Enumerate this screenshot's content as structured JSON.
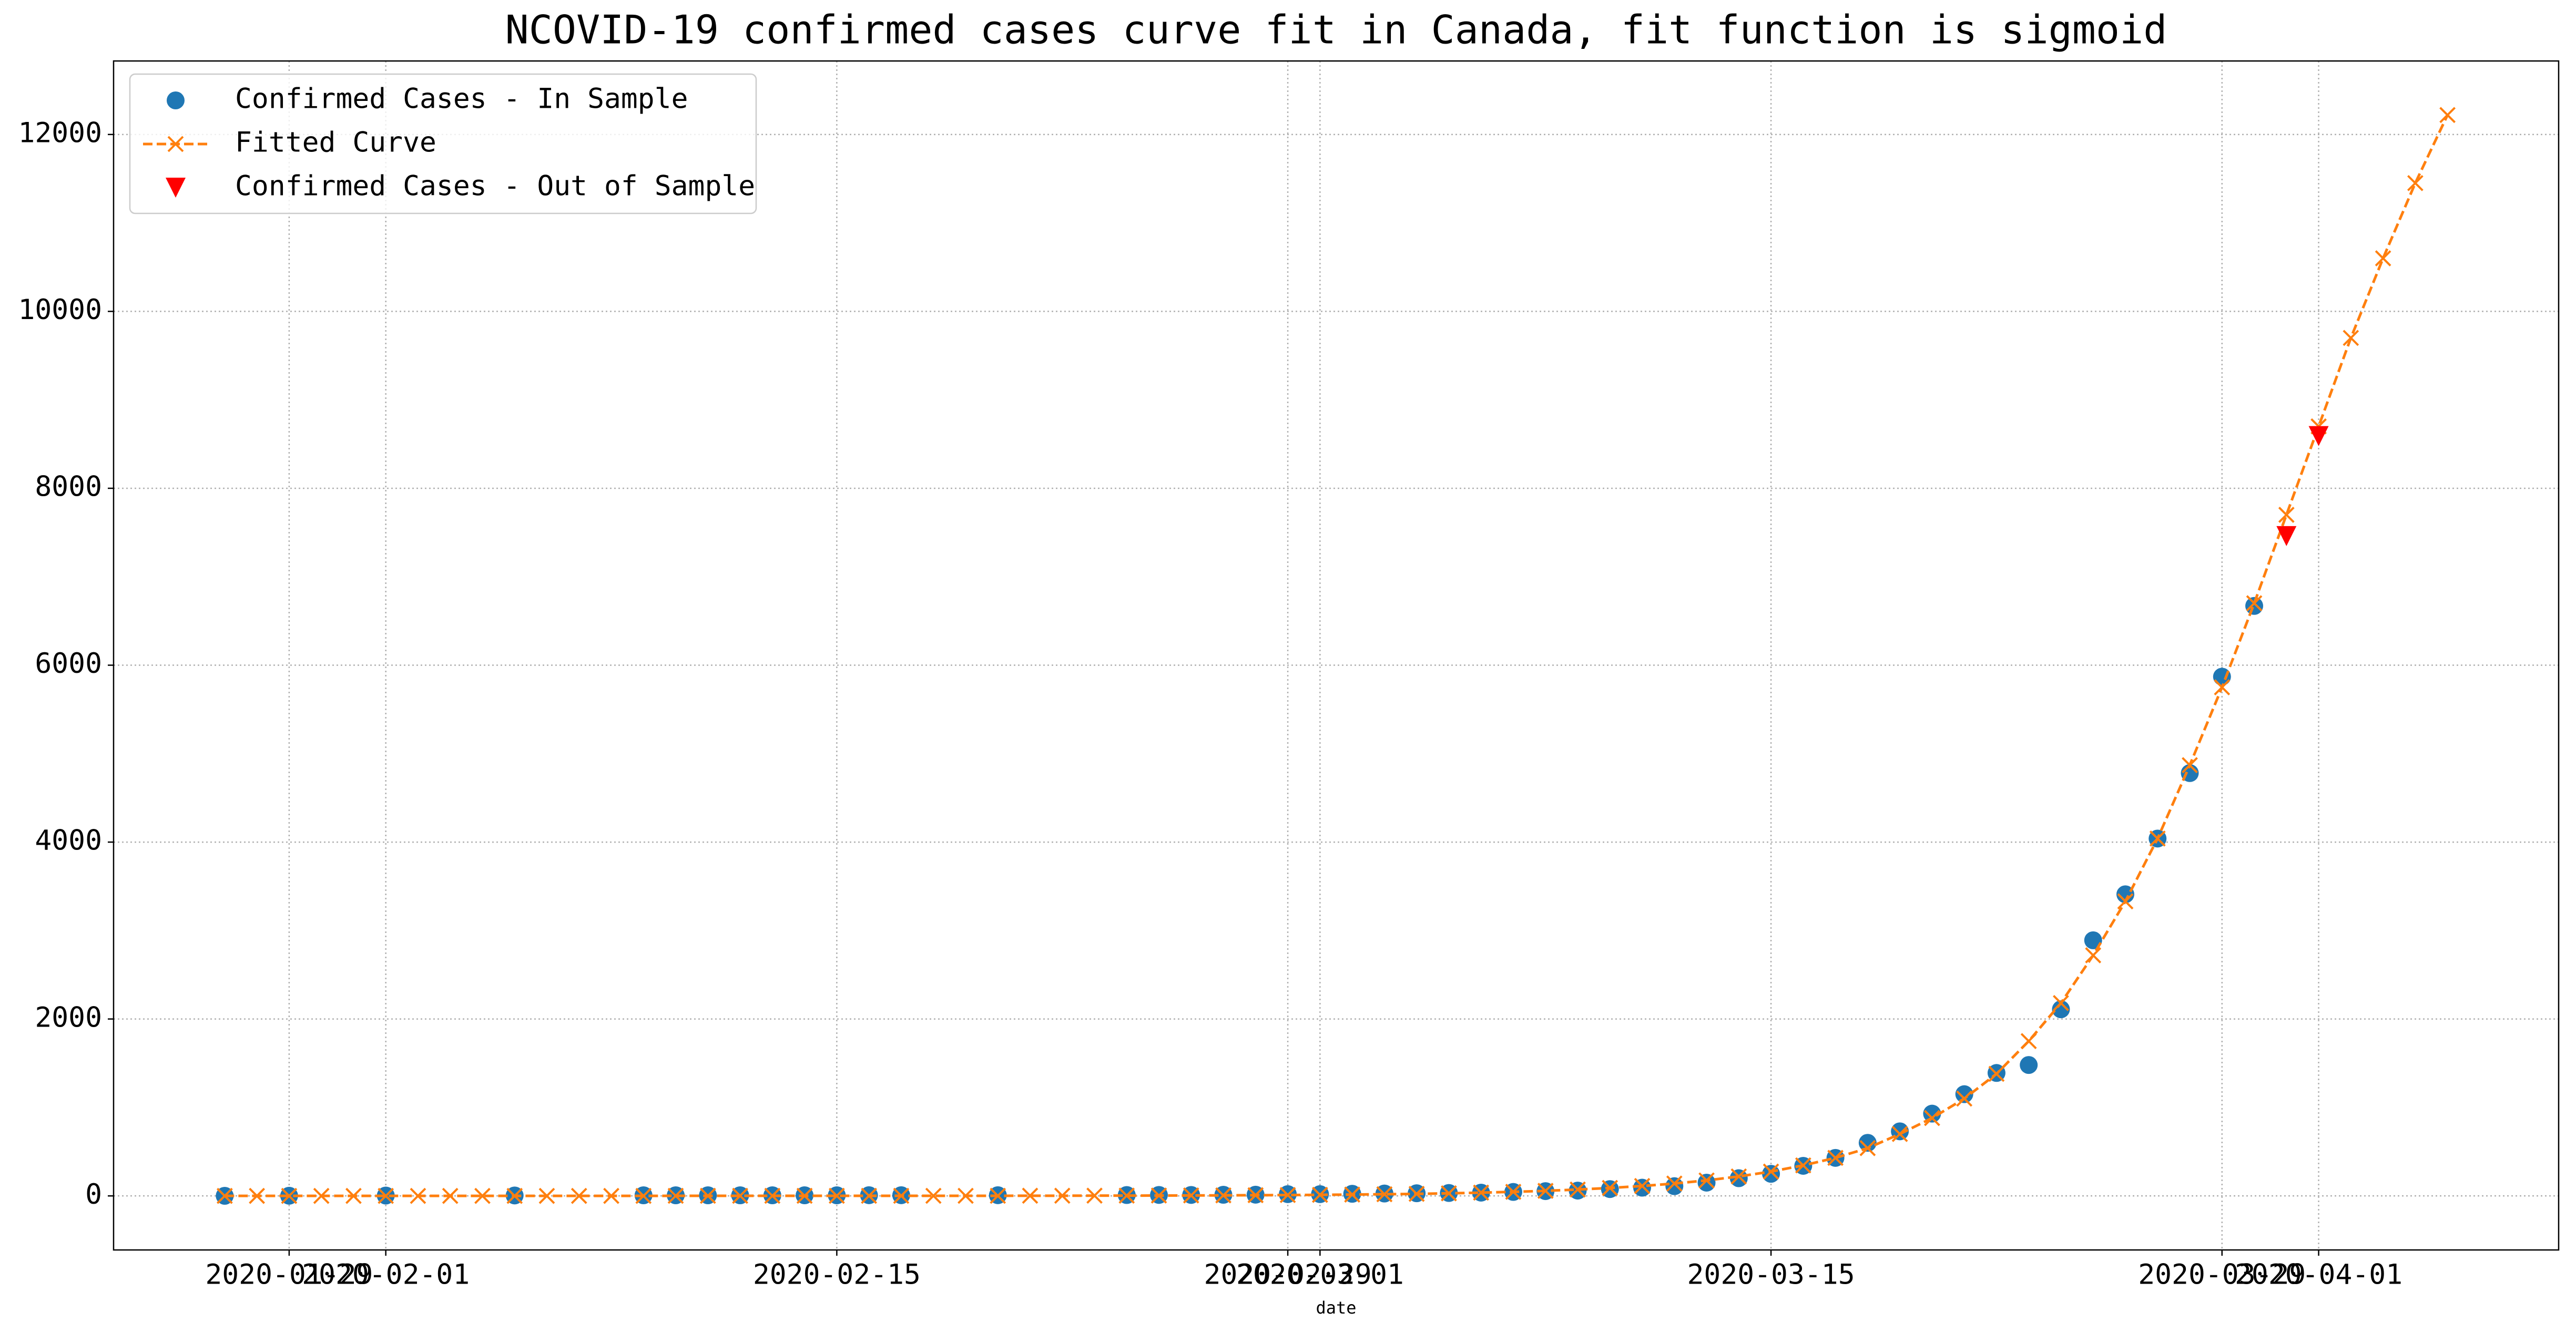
{
  "chart_data": {
    "type": "line",
    "title": "NCOVID-19 confirmed cases curve fit in Canada, fit function is sigmoid",
    "xlabel": "date",
    "xlim": [
      "2020-01-23 13:12",
      "2020-04-08 10:48"
    ],
    "xticks": [
      "2020-01-29",
      "2020-02-01",
      "2020-02-15",
      "2020-02-29",
      "2020-03-01",
      "2020-03-15",
      "2020-03-29",
      "2020-04-01"
    ],
    "ylim": [
      -611,
      12831
    ],
    "yticks": [
      0,
      2000,
      4000,
      6000,
      8000,
      10000,
      12000
    ],
    "grid": true,
    "legend": "upper left",
    "series": [
      {
        "name": "Confirmed Cases - In Sample",
        "color": "#1f77b4",
        "marker": "circle",
        "linestyle": "none",
        "x": [
          "2020-01-27",
          "2020-01-29",
          "2020-02-01",
          "2020-02-05",
          "2020-02-09",
          "2020-02-10",
          "2020-02-11",
          "2020-02-12",
          "2020-02-13",
          "2020-02-14",
          "2020-02-15",
          "2020-02-16",
          "2020-02-17",
          "2020-02-20",
          "2020-02-24",
          "2020-02-25",
          "2020-02-26",
          "2020-02-27",
          "2020-02-28",
          "2020-02-29",
          "2020-03-01",
          "2020-03-02",
          "2020-03-03",
          "2020-03-04",
          "2020-03-05",
          "2020-03-06",
          "2020-03-07",
          "2020-03-08",
          "2020-03-09",
          "2020-03-10",
          "2020-03-11",
          "2020-03-12",
          "2020-03-13",
          "2020-03-14",
          "2020-03-15",
          "2020-03-16",
          "2020-03-17",
          "2020-03-18",
          "2020-03-19",
          "2020-03-20",
          "2020-03-21",
          "2020-03-22",
          "2020-03-23",
          "2020-03-24",
          "2020-03-25",
          "2020-03-26",
          "2020-03-27",
          "2020-03-28",
          "2020-03-29",
          "2020-03-30"
        ],
        "values": [
          1,
          2,
          4,
          5,
          7,
          7,
          7,
          7,
          7,
          7,
          7,
          8,
          8,
          8,
          10,
          11,
          11,
          13,
          14,
          20,
          20,
          24,
          27,
          30,
          33,
          37,
          45,
          54,
          60,
          77,
          93,
          110,
          150,
          200,
          250,
          340,
          430,
          600,
          730,
          930,
          1150,
          1390,
          1480,
          2110,
          2890,
          3410,
          4040,
          4780,
          5870,
          6670
        ]
      },
      {
        "name": "Fitted Curve",
        "color": "#ff7f0e",
        "marker": "x",
        "linestyle": "dashed",
        "x": [
          "2020-01-27",
          "2020-01-28",
          "2020-01-29",
          "2020-01-30",
          "2020-01-31",
          "2020-02-01",
          "2020-02-02",
          "2020-02-03",
          "2020-02-04",
          "2020-02-05",
          "2020-02-06",
          "2020-02-07",
          "2020-02-08",
          "2020-02-09",
          "2020-02-10",
          "2020-02-11",
          "2020-02-12",
          "2020-02-13",
          "2020-02-14",
          "2020-02-15",
          "2020-02-16",
          "2020-02-17",
          "2020-02-18",
          "2020-02-19",
          "2020-02-20",
          "2020-02-21",
          "2020-02-22",
          "2020-02-23",
          "2020-02-24",
          "2020-02-25",
          "2020-02-26",
          "2020-02-27",
          "2020-02-28",
          "2020-02-29",
          "2020-03-01",
          "2020-03-02",
          "2020-03-03",
          "2020-03-04",
          "2020-03-05",
          "2020-03-06",
          "2020-03-07",
          "2020-03-08",
          "2020-03-09",
          "2020-03-10",
          "2020-03-11",
          "2020-03-12",
          "2020-03-13",
          "2020-03-14",
          "2020-03-15",
          "2020-03-16",
          "2020-03-17",
          "2020-03-18",
          "2020-03-19",
          "2020-03-20",
          "2020-03-21",
          "2020-03-22",
          "2020-03-23",
          "2020-03-24",
          "2020-03-25",
          "2020-03-26",
          "2020-03-27",
          "2020-03-28",
          "2020-03-29",
          "2020-03-30",
          "2020-03-31",
          "2020-04-01",
          "2020-04-02",
          "2020-04-03",
          "2020-04-04",
          "2020-04-05"
        ],
        "values": [
          0,
          0,
          0,
          0,
          0,
          0,
          0,
          0,
          0,
          0,
          0,
          0,
          0,
          0,
          1,
          1,
          1,
          1,
          1,
          1,
          1,
          1,
          1,
          1,
          1,
          2,
          2,
          3,
          3,
          4,
          5,
          6,
          8,
          10,
          12,
          15,
          19,
          23,
          29,
          37,
          46,
          57,
          72,
          90,
          112,
          140,
          175,
          220,
          275,
          345,
          430,
          540,
          700,
          880,
          1100,
          1380,
          1750,
          2180,
          2720,
          3330,
          4040,
          4870,
          5750,
          6700,
          7700,
          8700,
          9700,
          10600,
          11450,
          12220
        ]
      },
      {
        "name": "Confirmed Cases - Out of Sample",
        "color": "#ff0000",
        "marker": "triangle-down",
        "linestyle": "none",
        "x": [
          "2020-03-31",
          "2020-04-01"
        ],
        "values": [
          7460,
          8590
        ]
      }
    ]
  }
}
